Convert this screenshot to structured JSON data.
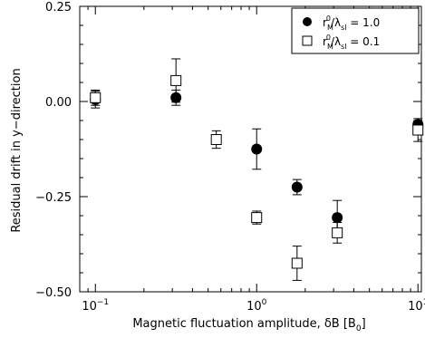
{
  "chart_data": {
    "type": "scatter",
    "x_scale": "log",
    "xlim": [
      0.08,
      10.5
    ],
    "ylim": [
      -0.5,
      0.25
    ],
    "xlabel": "Magnetic fluctuation amplitude, δB [B",
    "xlabel_sub": "0",
    "xlabel_close": "]",
    "ylabel": "Residual drift in y−direction",
    "x_ticks": [
      {
        "value": 0.1,
        "base": "10",
        "exp": "−1"
      },
      {
        "value": 1,
        "base": "10",
        "exp": "0"
      },
      {
        "value": 10,
        "base": "10",
        "exp": "1"
      }
    ],
    "y_ticks": [
      {
        "value": 0.25,
        "label": "0.25"
      },
      {
        "value": 0.0,
        "label": "0.00"
      },
      {
        "value": -0.25,
        "label": "−0.25"
      },
      {
        "value": -0.5,
        "label": "−0.50"
      }
    ],
    "legend_position": "top-right",
    "grid": false,
    "series": [
      {
        "name": "r_M^0/λ_sl = 1.0",
        "legend": {
          "r": "r",
          "sub": "M",
          "sup": "0",
          "slash": "/λ",
          "sub2": "sl",
          "eq": " = 1.0"
        },
        "marker": "filled-circle",
        "color": "#000000",
        "points": [
          {
            "x": 0.1,
            "y": 0.005,
            "err": 0.022
          },
          {
            "x": 0.316,
            "y": 0.01,
            "err": 0.02
          },
          {
            "x": 1.0,
            "y": -0.125,
            "err": 0.053
          },
          {
            "x": 1.78,
            "y": -0.225,
            "err": 0.02
          },
          {
            "x": 3.16,
            "y": -0.305,
            "err": 0.045
          },
          {
            "x": 10.0,
            "y": -0.06,
            "err": 0.01
          }
        ]
      },
      {
        "name": "r_M^0/λ_sl = 0.1",
        "legend": {
          "r": "r",
          "sub": "M",
          "sup": "0",
          "slash": "/λ",
          "sub2": "sl",
          "eq": " = 0.1"
        },
        "marker": "open-square",
        "color": "#000000",
        "points": [
          {
            "x": 0.1,
            "y": 0.01,
            "err": 0.02
          },
          {
            "x": 0.316,
            "y": 0.055,
            "err": 0.057
          },
          {
            "x": 0.562,
            "y": -0.1,
            "err": 0.023
          },
          {
            "x": 1.0,
            "y": -0.305,
            "err": 0.017
          },
          {
            "x": 1.78,
            "y": -0.425,
            "err": 0.045
          },
          {
            "x": 3.16,
            "y": -0.345,
            "err": 0.027
          },
          {
            "x": 10.0,
            "y": -0.075,
            "err": 0.03
          }
        ]
      }
    ]
  }
}
